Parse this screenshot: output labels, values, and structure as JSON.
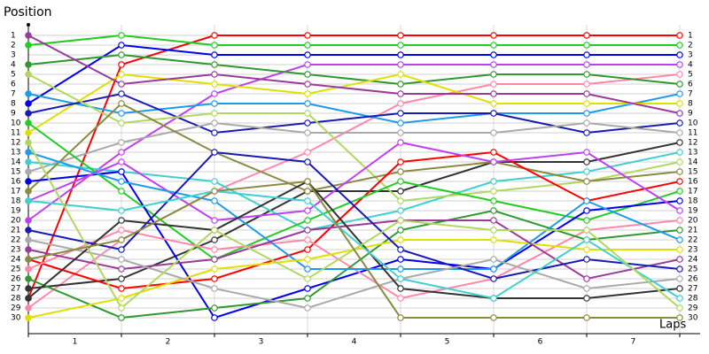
{
  "chart_data": {
    "type": "line",
    "title": "Position",
    "x_label": "Laps",
    "x": [
      0,
      1,
      2,
      3,
      4,
      5,
      6,
      7
    ],
    "xlim": [
      0,
      7
    ],
    "xticks": [
      {
        "value": 0.5,
        "label": "1"
      },
      {
        "value": 1.5,
        "label": "2"
      },
      {
        "value": 2.5,
        "label": "3"
      },
      {
        "value": 3.5,
        "label": "4"
      },
      {
        "value": 4.5,
        "label": "5"
      },
      {
        "value": 5.5,
        "label": "6"
      },
      {
        "value": 6.5,
        "label": "7"
      }
    ],
    "ylim": [
      30,
      1
    ],
    "yticks": [
      1,
      2,
      3,
      4,
      5,
      6,
      7,
      8,
      9,
      10,
      11,
      12,
      13,
      14,
      15,
      16,
      17,
      18,
      19,
      20,
      21,
      22,
      23,
      24,
      25,
      26,
      27,
      28,
      29,
      30
    ],
    "grid": true,
    "series": [
      {
        "color": "#ff0000",
        "values": [
          28,
          4,
          1,
          1,
          1,
          1,
          1,
          1
        ]
      },
      {
        "color": "#22cc22",
        "values": [
          2,
          1,
          2,
          2,
          2,
          2,
          2,
          2
        ]
      },
      {
        "color": "#0000ee",
        "values": [
          8,
          2,
          3,
          3,
          3,
          3,
          3,
          3
        ]
      },
      {
        "color": "#c040f0",
        "values": [
          20,
          13,
          7,
          4,
          4,
          4,
          4,
          4
        ]
      },
      {
        "color": "#ff88aa",
        "values": [
          29,
          22,
          17,
          13,
          8,
          6,
          6,
          5
        ]
      },
      {
        "color": "#2e9a2e",
        "values": [
          4,
          3,
          4,
          5,
          6,
          5,
          5,
          6
        ]
      },
      {
        "color": "#1e9be8",
        "values": [
          7,
          9,
          8,
          8,
          10,
          9,
          9,
          7
        ]
      },
      {
        "color": "#e0e000",
        "values": [
          11,
          5,
          6,
          7,
          5,
          8,
          8,
          8
        ]
      },
      {
        "color": "#9a3a9a",
        "values": [
          1,
          6,
          5,
          6,
          7,
          7,
          7,
          9
        ]
      },
      {
        "color": "#1a1ab4",
        "values": [
          9,
          7,
          11,
          10,
          9,
          9,
          11,
          10
        ]
      },
      {
        "color": "#aaaaaa",
        "values": [
          15,
          12,
          10,
          11,
          11,
          11,
          10,
          11
        ]
      },
      {
        "color": "#333333",
        "values": [
          27,
          26,
          22,
          17,
          17,
          14,
          14,
          12
        ]
      },
      {
        "color": "#40d0d0",
        "values": [
          14,
          15,
          16,
          21,
          19,
          16,
          15,
          13
        ]
      },
      {
        "color": "#b0d860",
        "values": [
          5,
          10,
          9,
          9,
          18,
          17,
          16,
          14
        ]
      },
      {
        "color": "#8a8a40",
        "values": [
          17,
          8,
          13,
          17,
          15,
          14,
          16,
          15
        ]
      },
      {
        "color": "#ff0000",
        "values": [
          24,
          27,
          26,
          23,
          14,
          13,
          18,
          16
        ]
      },
      {
        "color": "#22cc22",
        "values": [
          10,
          17,
          24,
          20,
          16,
          18,
          20,
          17
        ]
      },
      {
        "color": "#0000ee",
        "values": [
          16,
          15,
          30,
          27,
          24,
          25,
          19,
          18
        ]
      },
      {
        "color": "#c040f0",
        "values": [
          18,
          14,
          20,
          19,
          12,
          14,
          13,
          19
        ]
      },
      {
        "color": "#ff88aa",
        "values": [
          25,
          21,
          23,
          22,
          28,
          26,
          21,
          20
        ]
      },
      {
        "color": "#2e9a2e",
        "values": [
          26,
          30,
          29,
          28,
          21,
          19,
          22,
          21
        ]
      },
      {
        "color": "#1e9be8",
        "values": [
          13,
          16,
          18,
          25,
          25,
          25,
          18,
          22
        ]
      },
      {
        "color": "#e0e000",
        "values": [
          30,
          28,
          25,
          24,
          22,
          22,
          23,
          23
        ]
      },
      {
        "color": "#9a3a9a",
        "values": [
          23,
          25,
          24,
          21,
          20,
          20,
          26,
          24
        ]
      },
      {
        "color": "#1a1ab4",
        "values": [
          21,
          23,
          13,
          14,
          23,
          26,
          24,
          25
        ]
      },
      {
        "color": "#aaaaaa",
        "values": [
          22,
          24,
          27,
          29,
          26,
          24,
          27,
          26
        ]
      },
      {
        "color": "#333333",
        "values": [
          28,
          20,
          21,
          16,
          27,
          28,
          28,
          27
        ]
      },
      {
        "color": "#40d0d0",
        "values": [
          18,
          19,
          17,
          18,
          26,
          28,
          22,
          28
        ]
      },
      {
        "color": "#b0d860",
        "values": [
          12,
          29,
          21,
          26,
          20,
          21,
          21,
          29
        ]
      },
      {
        "color": "#8a8a40",
        "values": [
          24,
          22,
          17,
          16,
          30,
          30,
          30,
          30
        ]
      }
    ]
  }
}
